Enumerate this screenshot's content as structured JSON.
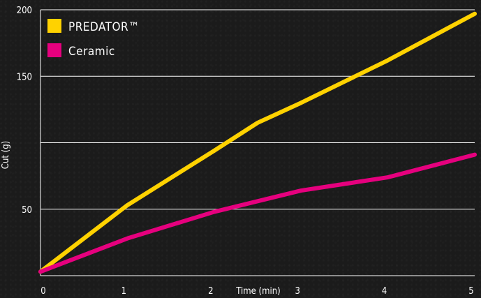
{
  "chart_data": {
    "type": "line",
    "xlabel": "Time (min)",
    "ylabel": "Cut (g)",
    "xlim": [
      0,
      5
    ],
    "ylim": [
      0,
      200
    ],
    "x_ticks": [
      0,
      1,
      2,
      3,
      4,
      5
    ],
    "y_tick_labels": [
      "50",
      "150",
      "200"
    ],
    "y_gridlines": [
      50,
      100,
      150,
      200
    ],
    "grid": true,
    "legend_position": "top-left",
    "series": [
      {
        "name": "PREDATOR™",
        "color": "#ffd200",
        "x": [
          0,
          1,
          2,
          2.5,
          3,
          4,
          5
        ],
        "y": [
          3,
          53,
          94,
          115,
          130,
          162,
          197
        ]
      },
      {
        "name": "Ceramic",
        "color": "#e6007e",
        "x": [
          0,
          1,
          2,
          3,
          4,
          5
        ],
        "y": [
          3,
          28,
          48,
          64,
          74,
          91
        ]
      }
    ]
  }
}
